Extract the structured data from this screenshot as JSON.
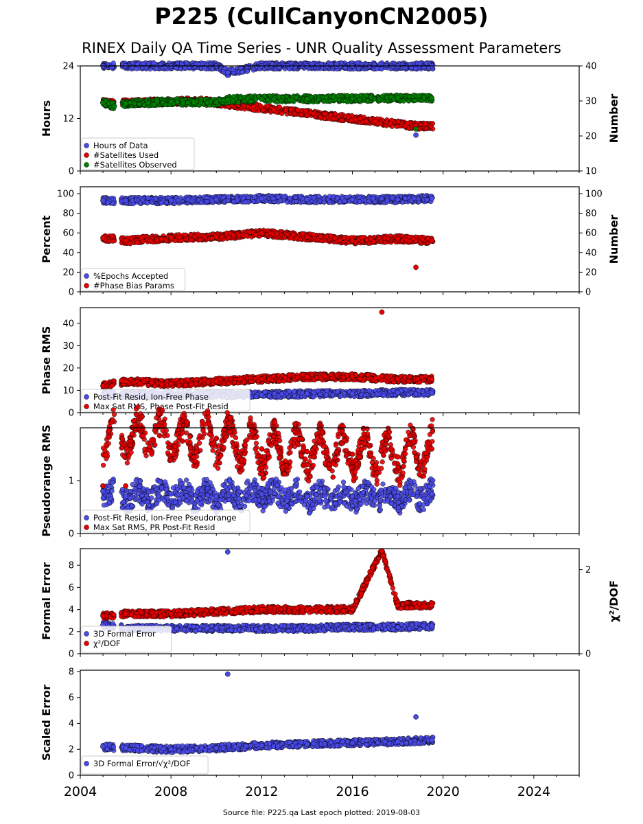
{
  "title": "P225 (CullCanyonCN2005)",
  "subtitle": "RINEX Daily QA Time Series - UNR Quality Assessment Parameters",
  "footer": "Source file: P225.qa Last epoch plotted: 2019-08-03",
  "chart_data": [
    {
      "type": "scatter",
      "ylabel": "Hours",
      "ylim": [
        0,
        24
      ],
      "yticks": [
        "0",
        "12",
        "24"
      ],
      "y2label": "Number",
      "y2lim": [
        10,
        40
      ],
      "y2ticks": [
        "10",
        "20",
        "30",
        "40"
      ],
      "xlim": [
        2004,
        2026
      ],
      "legend_position": "lower-left",
      "series": [
        {
          "name": "Hours of Data",
          "axis": "left",
          "color": "#4a4ae8",
          "x": [
            2005.0,
            2006.0,
            2008.0,
            2010.0,
            2010.5,
            2012.0,
            2014.0,
            2016.0,
            2018.0,
            2018.8,
            2019.5
          ],
          "y": [
            24,
            24,
            24,
            24,
            22.5,
            24,
            24,
            24,
            24,
            8.2,
            24
          ]
        },
        {
          "name": "#Satellites Used",
          "axis": "right",
          "color": "#e60000",
          "x": [
            2005.0,
            2005.3,
            2009.3,
            2018.8
          ],
          "y": [
            29.6,
            29.4,
            30.0,
            22.8
          ]
        },
        {
          "name": "#Satellites Observed",
          "axis": "right",
          "color": "#008000",
          "x": [
            2005.0,
            2005.5,
            2006.0,
            2007.0,
            2008.0,
            2009.0,
            2010.0,
            2010.5,
            2012.0,
            2014.0,
            2016.0,
            2018.0,
            2018.8,
            2019.5
          ],
          "y": [
            29.5,
            28.5,
            29.3,
            29.5,
            29.8,
            29.6,
            29.6,
            30.4,
            30.6,
            30.6,
            30.7,
            30.8,
            22.0,
            30.8
          ]
        }
      ]
    },
    {
      "type": "scatter",
      "ylabel": "Percent",
      "ylim": [
        0,
        107
      ],
      "yticks": [
        "0",
        "20",
        "40",
        "60",
        "80",
        "100"
      ],
      "y2label": "Number",
      "y2lim": [
        0,
        107
      ],
      "y2ticks": [
        "0",
        "20",
        "40",
        "60",
        "80",
        "100"
      ],
      "xlim": [
        2004,
        2026
      ],
      "legend_position": "lower-left",
      "series": [
        {
          "name": "%Epochs Accepted",
          "axis": "left",
          "color": "#4a4ae8",
          "x": [
            2005.0,
            2006.0,
            2008.0,
            2010.0,
            2012.0,
            2014.0,
            2016.0,
            2018.0,
            2019.5
          ],
          "y": [
            93,
            93,
            93,
            94,
            95,
            94,
            94,
            94,
            95
          ]
        },
        {
          "name": "#Phase Bias Params",
          "axis": "right",
          "color": "#e60000",
          "x": [
            2005.0,
            2006.0,
            2008.0,
            2010.0,
            2012.0,
            2014.0,
            2016.0,
            2018.0,
            2018.8,
            2019.5
          ],
          "y": [
            55,
            52,
            55,
            56,
            60,
            56,
            52,
            54,
            25,
            52
          ]
        }
      ]
    },
    {
      "type": "scatter",
      "ylabel": "Phase RMS",
      "ylim": [
        0,
        47
      ],
      "yticks": [
        "0",
        "10",
        "20",
        "30",
        "40"
      ],
      "xlim": [
        2004,
        2026
      ],
      "legend_position": "lower-left",
      "series": [
        {
          "name": "Post-Fit Resid, Ion-Free Phase",
          "color": "#4a4ae8",
          "x": [
            2005.0,
            2006.0,
            2008.0,
            2010.0,
            2012.0,
            2014.0,
            2016.0,
            2018.0,
            2019.5
          ],
          "y": [
            8,
            8,
            8,
            8,
            8,
            8.5,
            8.5,
            9,
            9
          ]
        },
        {
          "name": "Max Sat RMS, Phase Post-Fit Resid",
          "color": "#e60000",
          "x": [
            2005.0,
            2006.0,
            2008.0,
            2010.0,
            2012.0,
            2014.0,
            2016.0,
            2017.3,
            2018.0,
            2019.5
          ],
          "y": [
            12,
            14,
            13,
            14,
            15,
            16,
            16,
            45,
            15,
            15
          ]
        }
      ]
    },
    {
      "type": "scatter",
      "ylabel": "Pseudorange RMS",
      "ylim": [
        0,
        2
      ],
      "yticks": [
        "0",
        "1"
      ],
      "xlim": [
        2004,
        2026
      ],
      "legend_position": "lower-left",
      "series": [
        {
          "name": "Post-Fit Resid, Ion-Free Pseudorange",
          "color": "#4a4ae8",
          "x": [
            2005.0,
            2006.0,
            2008.0,
            2010.0,
            2012.0,
            2014.0,
            2016.0,
            2018.0,
            2019.5
          ],
          "y": [
            0.8,
            0.7,
            0.75,
            0.7,
            0.75,
            0.7,
            0.7,
            0.7,
            0.75
          ]
        },
        {
          "name": "Max Sat RMS, PR Post-Fit Resid",
          "color": "#e60000",
          "x": [
            2005.0,
            2006.0,
            2007.5,
            2008.5,
            2010.0,
            2012.0,
            2014.0,
            2016.0,
            2018.0,
            2019.5
          ],
          "y": [
            0.9,
            0.9,
            1.85,
            1.75,
            1.8,
            1.6,
            1.55,
            1.5,
            1.45,
            1.6
          ]
        }
      ]
    },
    {
      "type": "scatter",
      "ylabel": "Formal Error",
      "ylim": [
        0,
        9.5
      ],
      "yticks": [
        "0",
        "2",
        "4",
        "6",
        "8"
      ],
      "y2label": "χ²/DOF",
      "y2lim": [
        0,
        2.5
      ],
      "y2ticks": [
        "0",
        "2"
      ],
      "xlim": [
        2004,
        2026
      ],
      "legend_position": "lower-left",
      "series": [
        {
          "name": "3D Formal Error",
          "axis": "left",
          "color": "#4a4ae8",
          "x": [
            2005.0,
            2006.0,
            2008.0,
            2010.0,
            2010.5,
            2012.0,
            2014.0,
            2016.0,
            2018.0,
            2019.5
          ],
          "y": [
            2.6,
            2.3,
            2.3,
            2.3,
            9.2,
            2.3,
            2.3,
            2.4,
            2.4,
            2.5
          ]
        },
        {
          "name": "χ²/DOF",
          "axis": "right",
          "color": "#e60000",
          "x": [
            2005.0,
            2006.0,
            2008.0,
            2010.0,
            2012.0,
            2014.0,
            2016.0,
            2017.3,
            2018.0,
            2019.5
          ],
          "y": [
            0.9,
            0.95,
            0.95,
            1.0,
            1.05,
            1.05,
            1.05,
            2.45,
            1.15,
            1.15
          ]
        }
      ]
    },
    {
      "type": "scatter",
      "ylabel": "Scaled Error",
      "ylim": [
        0,
        8.1
      ],
      "yticks": [
        "0",
        "2",
        "4",
        "6",
        "8"
      ],
      "xlim": [
        2004,
        2026
      ],
      "xticks": [
        "2004",
        "2008",
        "2012",
        "2016",
        "2020",
        "2024"
      ],
      "legend_position": "lower-left",
      "series": [
        {
          "name": "3D Formal Error/√χ²/DOF",
          "color": "#4a4ae8",
          "x": [
            2005.0,
            2006.0,
            2008.0,
            2010.0,
            2010.5,
            2012.0,
            2014.0,
            2016.0,
            2018.0,
            2018.8,
            2019.5
          ],
          "y": [
            2.2,
            2.1,
            2.0,
            2.1,
            7.8,
            2.3,
            2.4,
            2.5,
            2.6,
            4.5,
            2.7
          ]
        }
      ]
    }
  ]
}
